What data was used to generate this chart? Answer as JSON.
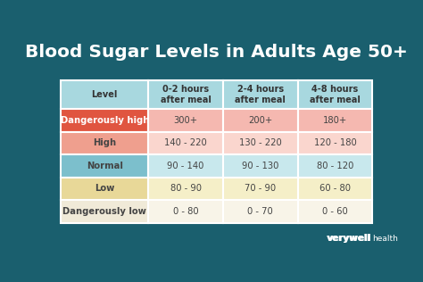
{
  "title": "Blood Sugar Levels in Adults Age 50+",
  "title_color": "#FFFFFF",
  "background_color": "#1a5f6e",
  "col_headers": [
    "Level",
    "0-2 hours\nafter meal",
    "2-4 hours\nafter meal",
    "4-8 hours\nafter meal"
  ],
  "rows": [
    {
      "label": "Dangerously high",
      "values": [
        "300+",
        "200+",
        "180+"
      ],
      "label_bg": "#e05540",
      "value_bg": "#f5b8b0",
      "label_color": "#FFFFFF",
      "value_color": "#444444",
      "bold_label": true
    },
    {
      "label": "High",
      "values": [
        "140 - 220",
        "130 - 220",
        "120 - 180"
      ],
      "label_bg": "#ef9f8e",
      "value_bg": "#fad6ce",
      "label_color": "#444444",
      "value_color": "#444444",
      "bold_label": true
    },
    {
      "label": "Normal",
      "values": [
        "90 - 140",
        "90 - 130",
        "80 - 120"
      ],
      "label_bg": "#7cbfcc",
      "value_bg": "#c8e8ed",
      "label_color": "#444444",
      "value_color": "#444444",
      "bold_label": true
    },
    {
      "label": "Low",
      "values": [
        "80 - 90",
        "70 - 90",
        "60 - 80"
      ],
      "label_bg": "#e8d898",
      "value_bg": "#f5efc8",
      "label_color": "#444444",
      "value_color": "#444444",
      "bold_label": true
    },
    {
      "label": "Dangerously low",
      "values": [
        "0 - 80",
        "0 - 70",
        "0 - 60"
      ],
      "label_bg": "#f0ead8",
      "value_bg": "#f8f4e8",
      "label_color": "#444444",
      "value_color": "#444444",
      "bold_label": true
    }
  ],
  "header_bg": "#a8d8df",
  "header_color": "#333333",
  "footer_bold": "verywell",
  "footer_light": "health",
  "footer_color": "#FFFFFF",
  "grid_color": "#FFFFFF"
}
